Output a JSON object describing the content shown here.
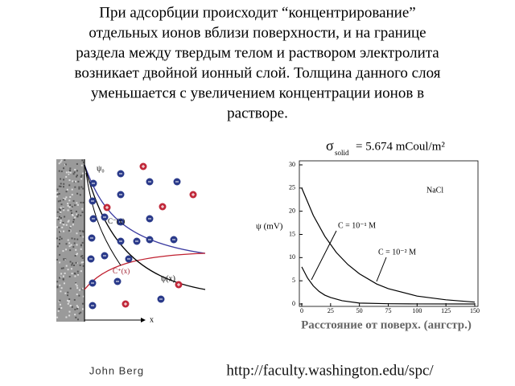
{
  "text_lines": [
    "При адсорбции происходит “концентрирование”",
    "отдельных ионов вблизи поверхности, и на границе",
    "раздела между твердым телом и раствором электролита",
    "возникает двойной ионный слой. Толщина данного слоя",
    "уменьшается с увеличением концентрации ионов в",
    "растворе."
  ],
  "diagram": {
    "labels": {
      "psi0": "ψ₀",
      "c_minus": "C⁻(x)",
      "c_plus": "C⁺(x)",
      "psi_x": "ψ(x)",
      "x_axis": "x"
    }
  },
  "chart_data": {
    "type": "line",
    "sigma_symbol": "σ",
    "sigma_sub": "solid",
    "sigma_value": "= 5.674 mCoul/m²",
    "y_label": "ψ (mV)",
    "x_label": "Расстояние от поверх. (ангстр.)",
    "annotation": "NaCl",
    "xlim": [
      0,
      150
    ],
    "ylim": [
      0,
      30
    ],
    "xticks": [
      0,
      25,
      50,
      75,
      100,
      125,
      150
    ],
    "yticks": [
      0,
      5,
      10,
      15,
      20,
      25,
      30
    ],
    "series": [
      {
        "name": "C = 10⁻¹ M",
        "color": "#000000",
        "x": [
          0,
          5,
          10,
          15,
          20,
          25,
          35,
          50,
          75,
          100,
          150
        ],
        "values": [
          8,
          5.6,
          3.9,
          2.7,
          1.9,
          1.4,
          0.7,
          0.2,
          0.05,
          0.01,
          0
        ]
      },
      {
        "name": "C = 10⁻² M",
        "color": "#000000",
        "x": [
          0,
          10,
          20,
          30,
          40,
          50,
          65,
          75,
          100,
          125,
          150
        ],
        "values": [
          25,
          19.1,
          14.6,
          11.1,
          8.5,
          6.5,
          4.3,
          3.3,
          1.7,
          0.9,
          0.4
        ]
      }
    ]
  },
  "footer": {
    "author": "John Berg",
    "url": "http://faculty.washington.edu/spc/"
  }
}
